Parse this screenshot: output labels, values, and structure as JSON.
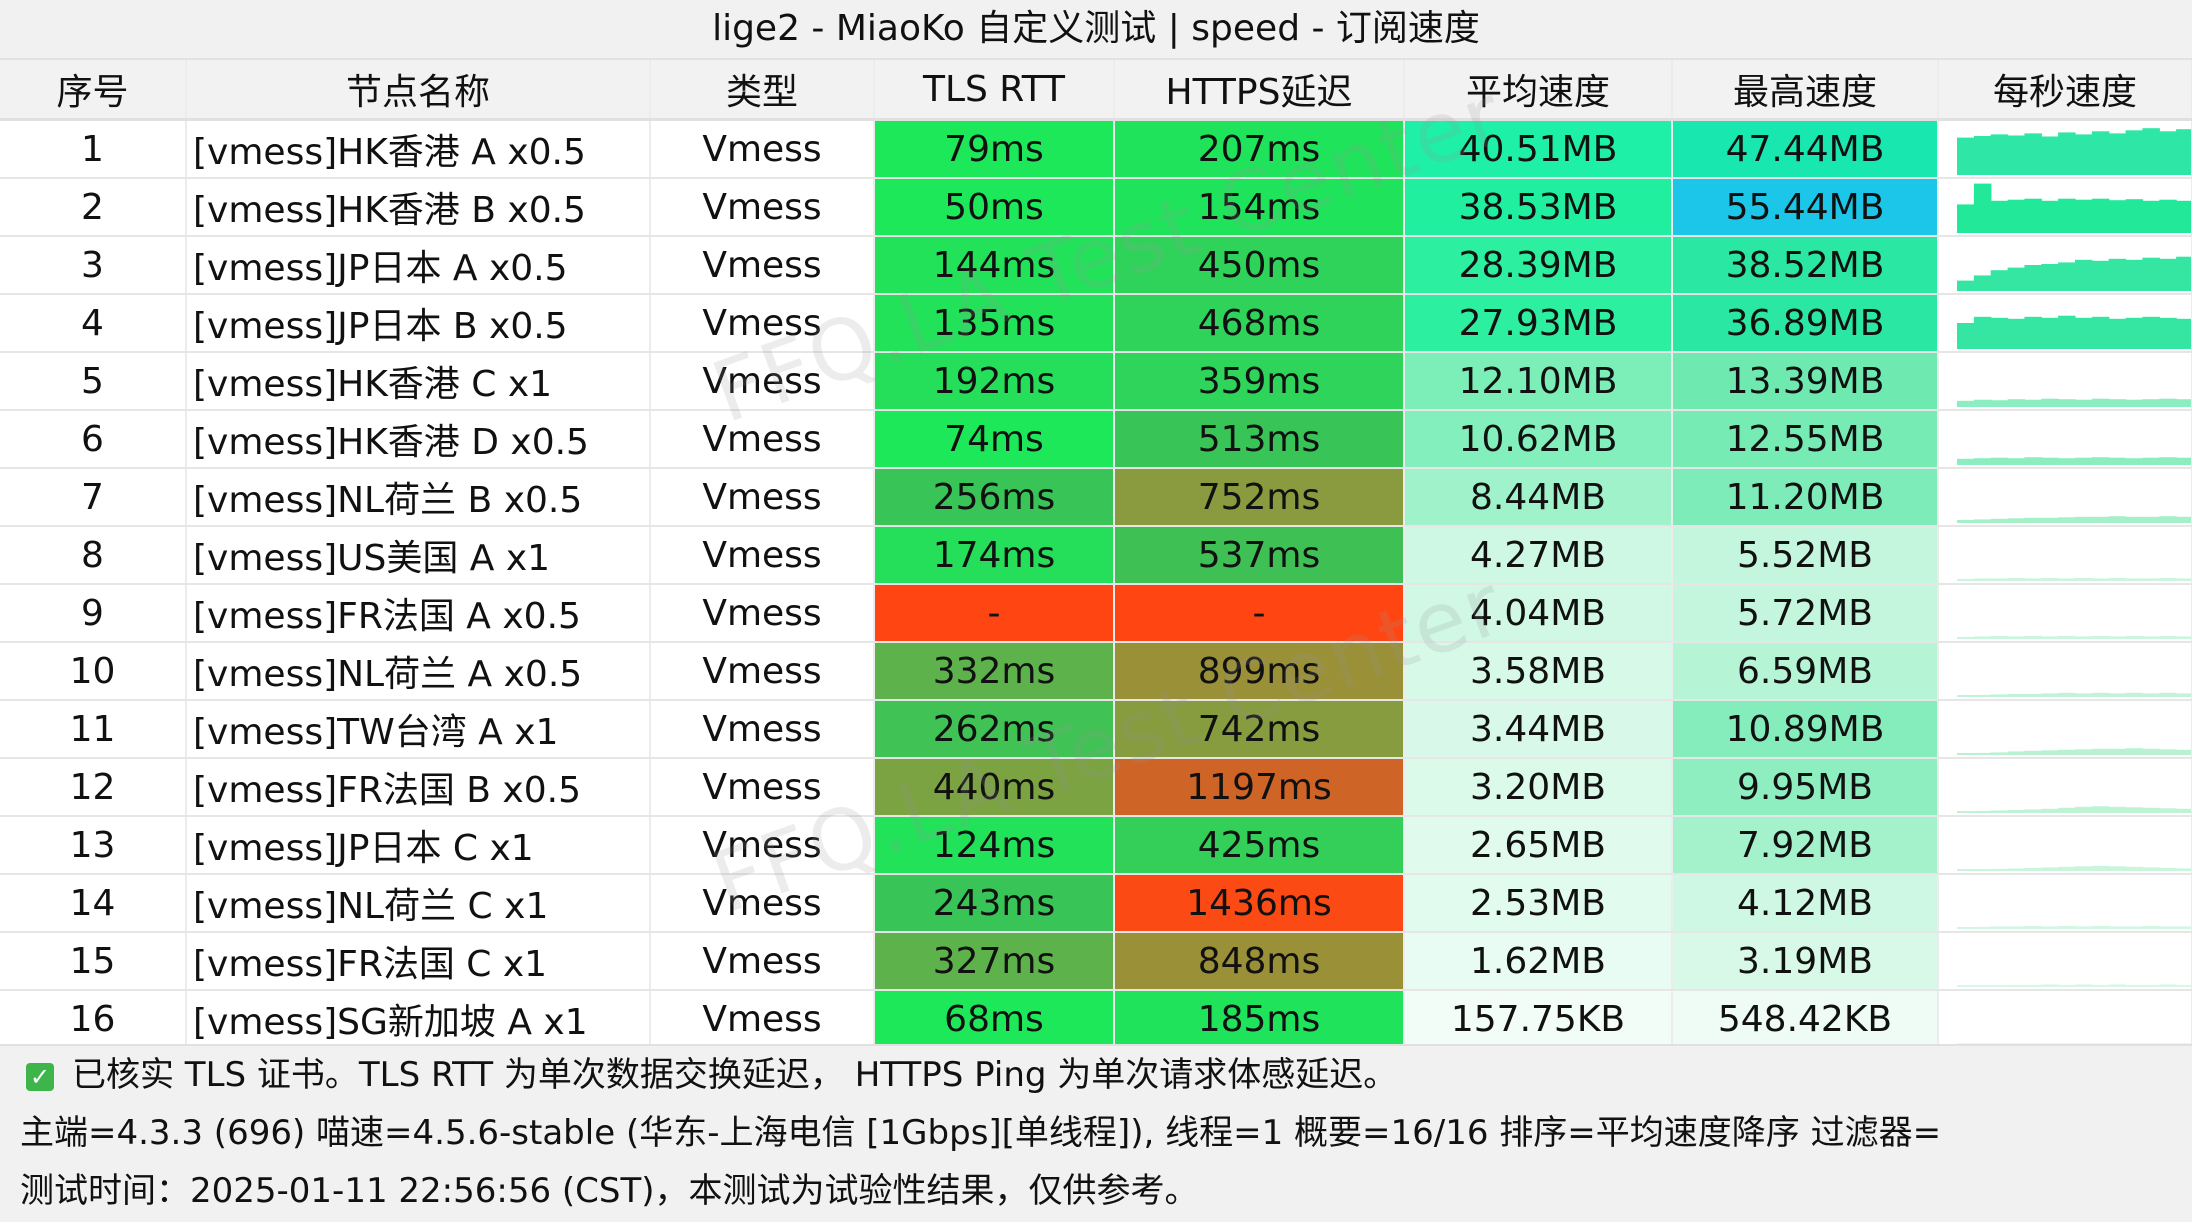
{
  "title": "lige2 - MiaoKo 自定义测试 | speed - 订阅速度",
  "watermark": "FFQ.LA Test Center",
  "columns": [
    "序号",
    "节点名称",
    "类型",
    "TLS RTT",
    "HTTPS延迟",
    "平均速度",
    "最高速度",
    "每秒速度"
  ],
  "rows": [
    {
      "idx": "1",
      "name": "[vmess]HK香港 A x0.5",
      "type": "Vmess",
      "tls": "79ms",
      "https": "207ms",
      "avg": "40.51MB",
      "max": "47.44MB",
      "tlsColor": "#1de85a",
      "httpsColor": "#1fe35b",
      "avgColor": "#1ff0a8",
      "maxColor": "#18e8b0",
      "spark": [
        0.72,
        0.75,
        0.78,
        0.76,
        0.8,
        0.74,
        0.82,
        0.78,
        0.84,
        0.8,
        0.86,
        0.9,
        0.84,
        0.88
      ],
      "sparkColor": "#2ee6a5"
    },
    {
      "idx": "2",
      "name": "[vmess]HK香港 B x0.5",
      "type": "Vmess",
      "tls": "50ms",
      "https": "154ms",
      "avg": "38.53MB",
      "max": "55.44MB",
      "tlsColor": "#1de85a",
      "httpsColor": "#1fe35b",
      "avgColor": "#21efa0",
      "maxColor": "#1cc6e8",
      "spark": [
        0.55,
        0.95,
        0.62,
        0.64,
        0.66,
        0.62,
        0.66,
        0.64,
        0.66,
        0.63,
        0.65,
        0.62,
        0.64,
        0.62
      ],
      "sparkColor": "#22e89a"
    },
    {
      "idx": "3",
      "name": "[vmess]JP日本 A x0.5",
      "type": "Vmess",
      "tls": "144ms",
      "https": "450ms",
      "avg": "28.39MB",
      "max": "38.52MB",
      "tlsColor": "#22e25a",
      "httpsColor": "#30d35a",
      "avgColor": "#2cefa0",
      "maxColor": "#2ae7a4",
      "spark": [
        0.2,
        0.3,
        0.4,
        0.45,
        0.5,
        0.52,
        0.55,
        0.6,
        0.58,
        0.62,
        0.6,
        0.64,
        0.62,
        0.66
      ],
      "sparkColor": "#35e6a2"
    },
    {
      "idx": "4",
      "name": "[vmess]JP日本 B x0.5",
      "type": "Vmess",
      "tls": "135ms",
      "https": "468ms",
      "avg": "27.93MB",
      "max": "36.89MB",
      "tlsColor": "#22e25a",
      "httpsColor": "#30d35a",
      "avgColor": "#2cefa0",
      "maxColor": "#2ae7a4",
      "spark": [
        0.5,
        0.62,
        0.6,
        0.58,
        0.62,
        0.6,
        0.64,
        0.6,
        0.62,
        0.58,
        0.6,
        0.62,
        0.6,
        0.58
      ],
      "sparkColor": "#35e6a2"
    },
    {
      "idx": "5",
      "name": "[vmess]HK香港 C x1",
      "type": "Vmess",
      "tls": "192ms",
      "https": "359ms",
      "avg": "12.10MB",
      "max": "13.39MB",
      "tlsColor": "#25df5a",
      "httpsColor": "#2fd55a",
      "avgColor": "#7ceeb7",
      "maxColor": "#6eeab0",
      "spark": [
        0.12,
        0.14,
        0.13,
        0.15,
        0.14,
        0.16,
        0.15,
        0.14,
        0.16,
        0.15,
        0.14,
        0.15,
        0.16,
        0.15
      ],
      "sparkColor": "#8ceec0"
    },
    {
      "idx": "6",
      "name": "[vmess]HK香港 D x0.5",
      "type": "Vmess",
      "tls": "74ms",
      "https": "513ms",
      "avg": "10.62MB",
      "max": "12.55MB",
      "tlsColor": "#1de85a",
      "httpsColor": "#38c456",
      "avgColor": "#83efbc",
      "maxColor": "#76ebb4",
      "spark": [
        0.12,
        0.13,
        0.14,
        0.13,
        0.15,
        0.14,
        0.13,
        0.14,
        0.15,
        0.14,
        0.13,
        0.14,
        0.15,
        0.14
      ],
      "sparkColor": "#8ceec0"
    },
    {
      "idx": "7",
      "name": "[vmess]NL荷兰 B x0.5",
      "type": "Vmess",
      "tls": "256ms",
      "https": "752ms",
      "avg": "8.44MB",
      "max": "11.20MB",
      "tlsColor": "#38c456",
      "httpsColor": "#8a9a3e",
      "avgColor": "#9ff2ca",
      "maxColor": "#7eecb8",
      "spark": [
        0.06,
        0.07,
        0.08,
        0.09,
        0.1,
        0.1,
        0.11,
        0.12,
        0.12,
        0.13,
        0.12,
        0.12,
        0.13,
        0.12
      ],
      "sparkColor": "#a5f0c9"
    },
    {
      "idx": "8",
      "name": "[vmess]US美国 A x1",
      "type": "Vmess",
      "tls": "174ms",
      "https": "537ms",
      "avg": "4.27MB",
      "max": "5.52MB",
      "tlsColor": "#25df5a",
      "httpsColor": "#3ec055",
      "avgColor": "#cef8e3",
      "maxColor": "#c4f6dd",
      "spark": [
        0.04,
        0.05,
        0.05,
        0.06,
        0.05,
        0.06,
        0.05,
        0.06,
        0.05,
        0.06,
        0.05,
        0.05,
        0.06,
        0.05
      ],
      "sparkColor": "#cbf5de"
    },
    {
      "idx": "9",
      "name": "[vmess]FR法国 A x0.5",
      "type": "Vmess",
      "tls": "-",
      "https": "-",
      "avg": "4.04MB",
      "max": "5.72MB",
      "tlsColor": "#ff4612",
      "httpsColor": "#ff4612",
      "avgColor": "#d0f8e5",
      "maxColor": "#c3f6dc",
      "spark": [
        0.04,
        0.05,
        0.06,
        0.05,
        0.06,
        0.05,
        0.06,
        0.05,
        0.06,
        0.05,
        0.06,
        0.05,
        0.06,
        0.05
      ],
      "sparkColor": "#cbf5de"
    },
    {
      "idx": "10",
      "name": "[vmess]NL荷兰 A x0.5",
      "type": "Vmess",
      "tls": "332ms",
      "https": "899ms",
      "avg": "3.58MB",
      "max": "6.59MB",
      "tlsColor": "#5db24b",
      "httpsColor": "#9a9038",
      "avgColor": "#d6f9e8",
      "maxColor": "#b5f4d4",
      "spark": [
        0.03,
        0.04,
        0.05,
        0.06,
        0.06,
        0.07,
        0.08,
        0.07,
        0.08,
        0.07,
        0.08,
        0.07,
        0.08,
        0.07
      ],
      "sparkColor": "#c2f3d8"
    },
    {
      "idx": "11",
      "name": "[vmess]TW台湾 A x1",
      "type": "Vmess",
      "tls": "262ms",
      "https": "742ms",
      "avg": "3.44MB",
      "max": "10.89MB",
      "tlsColor": "#40c255",
      "httpsColor": "#879c3f",
      "avgColor": "#d8f9e9",
      "maxColor": "#85edbb",
      "spark": [
        0.03,
        0.04,
        0.05,
        0.07,
        0.08,
        0.09,
        0.1,
        0.11,
        0.12,
        0.12,
        0.13,
        0.12,
        0.11,
        0.1
      ],
      "sparkColor": "#b8f2d3"
    },
    {
      "idx": "12",
      "name": "[vmess]FR法国 B x0.5",
      "type": "Vmess",
      "tls": "440ms",
      "https": "1197ms",
      "avg": "3.20MB",
      "max": "9.95MB",
      "tlsColor": "#7ca342",
      "httpsColor": "#cf6427",
      "avgColor": "#dbfaea",
      "maxColor": "#8feebf",
      "spark": [
        0.03,
        0.04,
        0.05,
        0.06,
        0.07,
        0.08,
        0.1,
        0.12,
        0.13,
        0.12,
        0.11,
        0.1,
        0.09,
        0.08
      ],
      "sparkColor": "#bff3d6"
    },
    {
      "idx": "13",
      "name": "[vmess]JP日本 C x1",
      "type": "Vmess",
      "tls": "124ms",
      "https": "425ms",
      "avg": "2.65MB",
      "max": "7.92MB",
      "tlsColor": "#22e25a",
      "httpsColor": "#33cf58",
      "avgColor": "#e0fbee",
      "maxColor": "#a4f2cc",
      "spark": [
        0.02,
        0.03,
        0.04,
        0.05,
        0.06,
        0.07,
        0.08,
        0.09,
        0.1,
        0.09,
        0.08,
        0.07,
        0.06,
        0.05
      ],
      "sparkColor": "#c8f5dc"
    },
    {
      "idx": "14",
      "name": "[vmess]NL荷兰 C x1",
      "type": "Vmess",
      "tls": "243ms",
      "https": "1436ms",
      "avg": "2.53MB",
      "max": "4.12MB",
      "tlsColor": "#38c456",
      "httpsColor": "#fc4a14",
      "avgColor": "#e2fbef",
      "maxColor": "#cff8e4",
      "spark": [
        0.03,
        0.04,
        0.05,
        0.05,
        0.06,
        0.05,
        0.06,
        0.05,
        0.06,
        0.05,
        0.05,
        0.06,
        0.05,
        0.05
      ],
      "sparkColor": "#d2f6e2"
    },
    {
      "idx": "15",
      "name": "[vmess]FR法国 C x1",
      "type": "Vmess",
      "tls": "327ms",
      "https": "848ms",
      "avg": "1.62MB",
      "max": "3.19MB",
      "tlsColor": "#5db24b",
      "httpsColor": "#9a9038",
      "avgColor": "#e9fcf3",
      "maxColor": "#d8f9e8",
      "spark": [
        0.02,
        0.03,
        0.03,
        0.04,
        0.04,
        0.05,
        0.04,
        0.05,
        0.04,
        0.05,
        0.04,
        0.04,
        0.05,
        0.04
      ],
      "sparkColor": "#d9f7e6"
    },
    {
      "idx": "16",
      "name": "[vmess]SG新加坡 A x1",
      "type": "Vmess",
      "tls": "68ms",
      "https": "185ms",
      "avg": "157.75KB",
      "max": "548.42KB",
      "tlsColor": "#1de85a",
      "httpsColor": "#1fe35b",
      "avgColor": "#f3fdf8",
      "maxColor": "#eefcf5",
      "spark": [
        0.01,
        0.01,
        0.01,
        0.01,
        0.01,
        0.01,
        0.01,
        0.01,
        0.01,
        0.01,
        0.01,
        0.01,
        0.01,
        0.01
      ],
      "sparkColor": "#e4f9ee"
    }
  ],
  "footer": {
    "line1": "已核实 TLS 证书。TLS RTT 为单次数据交换延迟， HTTPS Ping 为单次请求体感延迟。",
    "line2": "主端=4.3.3 (696) 喵速=4.5.6-stable (华东-上海电信 [1Gbps][单线程]), 线程=1 概要=16/16 排序=平均速度降序 过滤器=",
    "line3": "测试时间：2025-01-11 22:56:56 (CST)，本测试为试验性结果，仅供参考。"
  }
}
